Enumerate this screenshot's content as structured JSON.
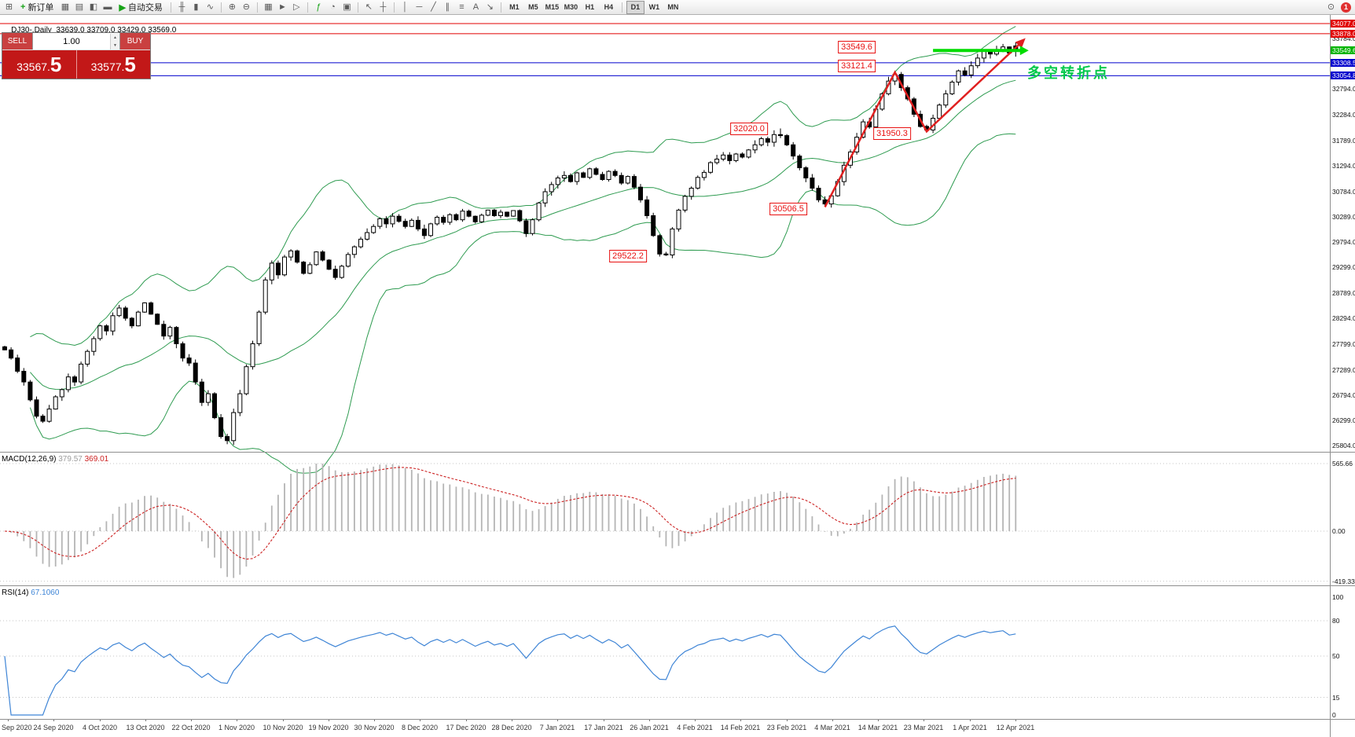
{
  "toolbar": {
    "items": [
      {
        "type": "icon",
        "name": "new-chart-icon",
        "glyph": "⊞"
      },
      {
        "type": "button",
        "name": "new-order-button",
        "label": "新订单",
        "glyph": "+",
        "glyph_color": "#17a317"
      },
      {
        "type": "icon",
        "name": "profiles-icon",
        "glyph": "▦"
      },
      {
        "type": "icon",
        "name": "market-watch-icon",
        "glyph": "▤"
      },
      {
        "type": "icon",
        "name": "navigator-icon",
        "glyph": "◧"
      },
      {
        "type": "icon",
        "name": "terminal-icon",
        "glyph": "▬"
      },
      {
        "type": "button",
        "name": "autotrading-button",
        "label": "自动交易",
        "glyph": "▶",
        "glyph_color": "#17a317"
      },
      {
        "type": "sep"
      },
      {
        "type": "icon",
        "name": "bar-chart-icon",
        "glyph": "╫"
      },
      {
        "type": "icon",
        "name": "candlestick-chart-icon",
        "glyph": "▮"
      },
      {
        "type": "icon",
        "name": "line-chart-icon",
        "glyph": "∿"
      },
      {
        "type": "sep"
      },
      {
        "type": "icon",
        "name": "zoom-in-icon",
        "glyph": "⊕"
      },
      {
        "type": "icon",
        "name": "zoom-out-icon",
        "glyph": "⊖"
      },
      {
        "type": "sep"
      },
      {
        "type": "icon",
        "name": "tile-windows-icon",
        "glyph": "▦"
      },
      {
        "type": "icon",
        "name": "auto-scroll-icon",
        "glyph": "►"
      },
      {
        "type": "icon",
        "name": "chart-shift-icon",
        "glyph": "▷"
      },
      {
        "type": "sep"
      },
      {
        "type": "icon",
        "name": "indicators-icon",
        "glyph": "ƒ",
        "glyph_color": "#17a317"
      },
      {
        "type": "icon",
        "name": "clock-icon",
        "glyph": "◔"
      },
      {
        "type": "icon",
        "name": "templates-icon",
        "glyph": "▣"
      },
      {
        "type": "sep"
      },
      {
        "type": "icon",
        "name": "cursor-icon",
        "glyph": "↖"
      },
      {
        "type": "icon",
        "name": "crosshair-icon",
        "glyph": "┼"
      },
      {
        "type": "sep"
      },
      {
        "type": "icon",
        "name": "vertical-line-icon",
        "glyph": "│"
      },
      {
        "type": "icon",
        "name": "horizontal-line-icon",
        "glyph": "─"
      },
      {
        "type": "icon",
        "name": "trendline-icon",
        "glyph": "╱"
      },
      {
        "type": "icon",
        "name": "channel-icon",
        "glyph": "∥"
      },
      {
        "type": "icon",
        "name": "fibonacci-icon",
        "glyph": "≡"
      },
      {
        "type": "icon",
        "name": "text-label-icon",
        "glyph": "A"
      },
      {
        "type": "icon",
        "name": "arrow-object-icon",
        "glyph": "↘"
      },
      {
        "type": "sep"
      },
      {
        "type": "tf",
        "name": "tf-m1",
        "label": "M1"
      },
      {
        "type": "tf",
        "name": "tf-m5",
        "label": "M5"
      },
      {
        "type": "tf",
        "name": "tf-m15",
        "label": "M15"
      },
      {
        "type": "tf",
        "name": "tf-m30",
        "label": "M30"
      },
      {
        "type": "tf",
        "name": "tf-h1",
        "label": "H1"
      },
      {
        "type": "tf",
        "name": "tf-h4",
        "label": "H4"
      },
      {
        "type": "sep"
      },
      {
        "type": "tf",
        "name": "tf-d1",
        "label": "D1",
        "active": true
      },
      {
        "type": "tf",
        "name": "tf-w1",
        "label": "W1"
      },
      {
        "type": "tf",
        "name": "tf-mn",
        "label": "MN"
      }
    ],
    "right_items": [
      {
        "type": "icon",
        "name": "search-icon",
        "glyph": "⊙"
      },
      {
        "type": "badge",
        "name": "notification-badge",
        "label": "1"
      }
    ]
  },
  "chart": {
    "title": "DJ30-,Daily  33639.0 33709.0 33429.0 33569.0",
    "note": "多空转折点"
  },
  "trade_panel": {
    "sell_label": "SELL",
    "buy_label": "BUY",
    "volume": "1.00",
    "sell_price_main": "33567.",
    "sell_price_pip": "5",
    "buy_price_main": "33577.",
    "buy_price_pip": "5"
  },
  "indicators": {
    "macd": {
      "name": "MACD(12,26,9)",
      "value_main": "379.57",
      "value_signal": "369.01"
    },
    "rsi": {
      "name": "RSI(14)",
      "value": "67.1060"
    }
  },
  "chart_data": [
    {
      "type": "candlestick",
      "symbol": "DJ30-",
      "period": "Daily",
      "title": "DJ30-,Daily",
      "ylim": [
        25804.0,
        34077.0
      ],
      "last_ohlc": {
        "open": 33639.0,
        "high": 33709.0,
        "low": 33429.0,
        "close": 33569.0
      },
      "x_ticks": [
        "Sep 2020",
        "24 Sep 2020",
        "4 Oct 2020",
        "13 Oct 2020",
        "22 Oct 2020",
        "1 Nov 2020",
        "10 Nov 2020",
        "19 Nov 2020",
        "30 Nov 2020",
        "8 Dec 2020",
        "17 Dec 2020",
        "28 Dec 2020",
        "7 Jan 2021",
        "17 Jan 2021",
        "26 Jan 2021",
        "4 Feb 2021",
        "14 Feb 2021",
        "23 Feb 2021",
        "4 Mar 2021",
        "14 Mar 2021",
        "23 Mar 2021",
        "1 Apr 2021",
        "12 Apr 2021"
      ],
      "close": [
        27680,
        27520,
        27260,
        27050,
        26700,
        26380,
        26280,
        26520,
        26760,
        26900,
        27150,
        27050,
        27400,
        27650,
        27900,
        28150,
        28050,
        28350,
        28500,
        28300,
        28150,
        28420,
        28600,
        28380,
        28180,
        27950,
        28120,
        27800,
        27520,
        27420,
        27050,
        26650,
        26820,
        26350,
        25980,
        25900,
        26450,
        26820,
        27350,
        27800,
        28420,
        29050,
        29380,
        29150,
        29500,
        29620,
        29400,
        29180,
        29350,
        29600,
        29440,
        29260,
        29100,
        29320,
        29550,
        29700,
        29850,
        29980,
        30100,
        30250,
        30150,
        30300,
        30200,
        30100,
        30220,
        30050,
        29920,
        30150,
        30280,
        30180,
        30330,
        30230,
        30400,
        30300,
        30190,
        30320,
        30420,
        30310,
        30380,
        30300,
        30410,
        30210,
        29960,
        30230,
        30560,
        30780,
        30920,
        31050,
        31100,
        30980,
        31150,
        31060,
        31230,
        31120,
        31020,
        31180,
        31100,
        30950,
        31080,
        30870,
        30620,
        30310,
        29920,
        29560,
        29540,
        30050,
        30420,
        30690,
        30850,
        31060,
        31160,
        31350,
        31420,
        31500,
        31390,
        31520,
        31460,
        31600,
        31700,
        31820,
        31750,
        31900,
        31880,
        31700,
        31480,
        31250,
        31050,
        30850,
        30620,
        30540,
        30700,
        30980,
        31300,
        31560,
        31850,
        32150,
        32050,
        32400,
        32700,
        32950,
        33080,
        32820,
        32600,
        32300,
        32060,
        31990,
        32220,
        32480,
        32700,
        32930,
        33150,
        33070,
        33250,
        33400,
        33530,
        33480,
        33560,
        33620,
        33500,
        33569
      ],
      "overrides": {
        "35": {
          "low": 25830.0
        },
        "104": {
          "low": 29522.2
        },
        "122": {
          "high": 32020.0
        },
        "129": {
          "low": 30506.5
        },
        "140": {
          "high": 33121.4
        },
        "145": {
          "low": 31950.3
        },
        "159": {
          "open": 33639.0,
          "high": 33709.0,
          "low": 33429.0,
          "close": 33569.0
        }
      },
      "bollinger": {
        "period": 20,
        "deviation": 2,
        "color": "#2e9b50"
      },
      "y_axis_labels": [
        33784.0,
        32794.0,
        32284.0,
        31789.0,
        31294.0,
        30784.0,
        30289.0,
        29794.0,
        29299.0,
        28789.0,
        28294.0,
        27799.0,
        27289.0,
        26794.0,
        26299.0,
        25804.0
      ],
      "y_tags": [
        {
          "price": 34077.0,
          "color": "#e10000"
        },
        {
          "price": 33878.0,
          "color": "#e10000"
        },
        {
          "price": 33549.6,
          "color": "#00b400"
        },
        {
          "price": 33308.5,
          "color": "#0000cd"
        },
        {
          "price": 33054.8,
          "color": "#0000cd"
        }
      ],
      "h_lines": [
        {
          "price": 34077.0,
          "color": "#e10000"
        },
        {
          "price": 33878.0,
          "color": "#e10000"
        },
        {
          "price": 33308.5,
          "color": "#0000cd"
        },
        {
          "price": 33054.8,
          "color": "#0000cd"
        }
      ],
      "annotations": [
        {
          "text": "33549.6",
          "index": 134,
          "price": 33549.6,
          "dy": -4
        },
        {
          "text": "33121.4",
          "index": 134,
          "price": 33121.4,
          "dy": -8
        },
        {
          "text": "32020.0",
          "index": 117,
          "price": 32020.0,
          "dy": 0
        },
        {
          "text": "31950.3",
          "index": 139.5,
          "price": 31950.3,
          "dy": 2
        },
        {
          "text": "30506.5",
          "index": 123.3,
          "price": 30506.5,
          "dy": 4
        },
        {
          "text": "29522.2",
          "index": 98,
          "price": 29522.2,
          "dy": 0
        }
      ],
      "trend_zigzag": {
        "color": "#e02020",
        "points": [
          {
            "index": 129,
            "price": 30480
          },
          {
            "index": 140,
            "price": 33121.4
          },
          {
            "index": 145,
            "price": 31960
          },
          {
            "index": 159.8,
            "price": 33700
          }
        ]
      },
      "resistance_arrow": {
        "color": "#00dc00",
        "price": 33549.6,
        "from_index": 146,
        "to_index": 159.8
      }
    },
    {
      "type": "macd_histogram",
      "params": [
        12,
        26,
        9
      ],
      "display_values": [
        379.57,
        369.01
      ],
      "scale_labels": [
        565.66,
        0.0,
        -419.33
      ],
      "histogram_color": "#b5b5b5",
      "signal_color": "#cc2222",
      "signal_style": "dashed",
      "derived_from": "close"
    },
    {
      "type": "rsi_line",
      "params": [
        14
      ],
      "display_value": 67.106,
      "levels": [
        80,
        50,
        15
      ],
      "scale_labels": [
        100,
        80,
        50,
        15,
        0
      ],
      "line_color": "#3f85d6",
      "derived_from": "close"
    }
  ]
}
